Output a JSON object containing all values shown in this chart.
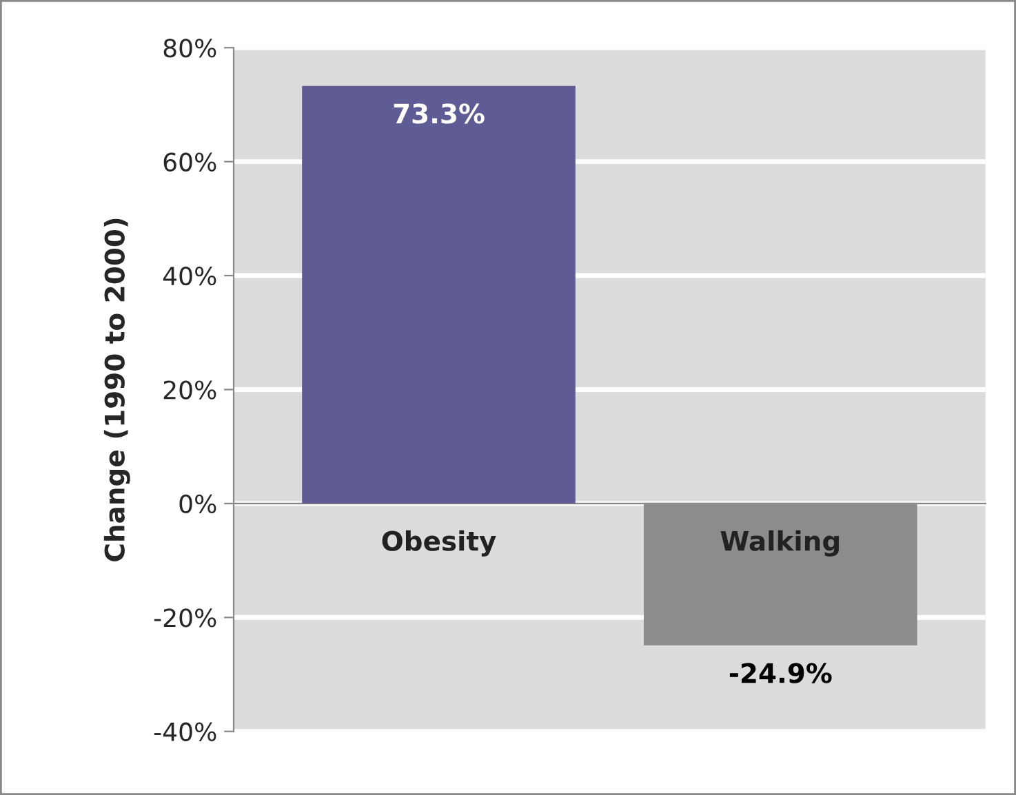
{
  "chart_data": {
    "type": "bar",
    "ylabel": "Change (1990 to 2000)",
    "categories": [
      "Obesity",
      "Walking"
    ],
    "values": [
      73.3,
      -24.9
    ],
    "colors": [
      "#5f5b94",
      "#8c8c8c"
    ],
    "value_labels": [
      "73.3%",
      "-24.9%"
    ],
    "ylim": [
      -40,
      80
    ],
    "yticks": [
      {
        "value": -40,
        "label": "-40%"
      },
      {
        "value": -20,
        "label": "-20%"
      },
      {
        "value": 0,
        "label": "0%"
      },
      {
        "value": 20,
        "label": "20%"
      },
      {
        "value": 40,
        "label": "40%"
      },
      {
        "value": 60,
        "label": "60%"
      },
      {
        "value": 80,
        "label": "80%"
      }
    ],
    "grid": "y"
  }
}
